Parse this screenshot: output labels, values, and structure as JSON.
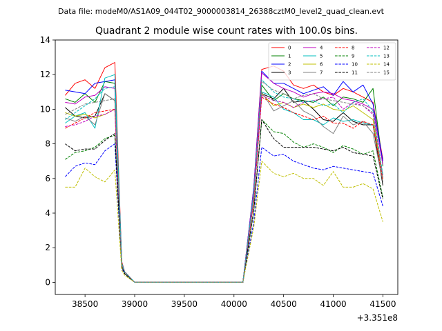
{
  "chart_data": {
    "type": "line",
    "suptitle": "Data file: modeM0/AS1A09_044T02_9000003814_26388cztM0_level2_quad_clean.evt",
    "title": "Quadrant 2 module wise count rates with 100.0s bins.",
    "xlabel": "",
    "ylabel": "",
    "x_offset_label": "+3.351e8",
    "xlim": [
      38200,
      41650
    ],
    "ylim": [
      -0.7,
      14
    ],
    "xticks": [
      38500,
      39000,
      39500,
      40000,
      40500,
      41000,
      41500
    ],
    "xtick_labels": [
      "38500",
      "39000",
      "39500",
      "40000",
      "40500",
      "41000",
      "41500"
    ],
    "yticks": [
      0,
      2,
      4,
      6,
      8,
      10,
      12,
      14
    ],
    "ytick_labels": [
      "0",
      "2",
      "4",
      "6",
      "8",
      "10",
      "12",
      "14"
    ],
    "legend_position": "top-right",
    "x": [
      38300,
      38400,
      38500,
      38600,
      38700,
      38800,
      38870,
      38900,
      39000,
      39100,
      39200,
      39300,
      39400,
      39500,
      39600,
      39700,
      39800,
      39900,
      40000,
      40090,
      40200,
      40280,
      40400,
      40500,
      40600,
      40700,
      40800,
      40900,
      41000,
      41100,
      41200,
      41300,
      41400,
      41500
    ],
    "series": [
      {
        "name": "0",
        "color": "#ff0000",
        "dash": "solid",
        "values": [
          10.8,
          11.5,
          11.7,
          11.2,
          12.4,
          12.7,
          1.2,
          0.6,
          0,
          0,
          0,
          0,
          0,
          0,
          0,
          0,
          0,
          0,
          0,
          0,
          5.5,
          12.3,
          12.5,
          12.2,
          11.4,
          11.2,
          11.4,
          11.0,
          10.8,
          11.2,
          11.0,
          10.7,
          10.4,
          7.1
        ]
      },
      {
        "name": "1",
        "color": "#008000",
        "dash": "solid",
        "values": [
          10.6,
          10.4,
          10.9,
          10.4,
          11.6,
          11.5,
          1.1,
          0.6,
          0,
          0,
          0,
          0,
          0,
          0,
          0,
          0,
          0,
          0,
          0,
          0,
          5.0,
          11.4,
          10.5,
          10.9,
          10.6,
          10.5,
          10.4,
          10.7,
          10.2,
          10.7,
          10.6,
          10.4,
          11.2,
          6.7
        ]
      },
      {
        "name": "2",
        "color": "#0000ff",
        "dash": "solid",
        "values": [
          11.1,
          11.0,
          10.9,
          11.5,
          11.6,
          11.7,
          1.1,
          0.6,
          0,
          0,
          0,
          0,
          0,
          0,
          0,
          0,
          0,
          0,
          0,
          0,
          5.5,
          12.2,
          11.5,
          11.5,
          11.2,
          10.9,
          11.1,
          11.3,
          10.8,
          11.6,
          11.0,
          11.4,
          10.3,
          7.0
        ]
      },
      {
        "name": "3",
        "color": "#000000",
        "dash": "solid",
        "values": [
          10.1,
          9.6,
          9.5,
          9.6,
          10.9,
          10.5,
          1.0,
          0.6,
          0,
          0,
          0,
          0,
          0,
          0,
          0,
          0,
          0,
          0,
          0,
          0,
          5.0,
          10.9,
          10.6,
          11.2,
          10.4,
          10.5,
          10.0,
          9.4,
          9.3,
          9.8,
          9.3,
          9.1,
          9.1,
          5.6
        ]
      },
      {
        "name": "4",
        "color": "#bf00bf",
        "dash": "solid",
        "values": [
          10.4,
          10.3,
          10.7,
          10.8,
          11.3,
          11.2,
          1.1,
          0.6,
          0,
          0,
          0,
          0,
          0,
          0,
          0,
          0,
          0,
          0,
          0,
          0,
          5.4,
          12.1,
          11.5,
          11.2,
          11.0,
          10.7,
          10.9,
          11.0,
          10.9,
          10.6,
          10.5,
          10.3,
          10.0,
          6.8
        ]
      },
      {
        "name": "5",
        "color": "#00bfbf",
        "dash": "solid",
        "values": [
          9.2,
          9.6,
          9.8,
          8.9,
          11.8,
          12.0,
          1.1,
          0.6,
          0,
          0,
          0,
          0,
          0,
          0,
          0,
          0,
          0,
          0,
          0,
          0,
          5.2,
          11.0,
          10.7,
          10.0,
          9.8,
          9.4,
          9.4,
          9.1,
          9.5,
          9.3,
          9.4,
          9.2,
          9.1,
          6.2
        ]
      },
      {
        "name": "6",
        "color": "#bfbf00",
        "dash": "solid",
        "values": [
          9.8,
          9.6,
          9.7,
          9.5,
          9.7,
          10.0,
          1.0,
          0.5,
          0,
          0,
          0,
          0,
          0,
          0,
          0,
          0,
          0,
          0,
          0,
          0,
          4.8,
          10.9,
          10.2,
          10.4,
          10.1,
          10.3,
          10.1,
          10.3,
          10.0,
          9.9,
          10.2,
          9.8,
          9.4,
          6.0
        ]
      },
      {
        "name": "7",
        "color": "#808080",
        "dash": "solid",
        "values": [
          9.5,
          9.3,
          9.6,
          9.1,
          10.9,
          10.5,
          1.0,
          0.6,
          0,
          0,
          0,
          0,
          0,
          0,
          0,
          0,
          0,
          0,
          0,
          0,
          4.8,
          11.0,
          9.9,
          10.2,
          10.5,
          9.9,
          9.6,
          9.0,
          8.6,
          9.6,
          9.1,
          9.3,
          8.6,
          5.8
        ]
      },
      {
        "name": "8",
        "color": "#ff0000",
        "dash": "dashed",
        "values": [
          8.9,
          9.2,
          9.5,
          9.8,
          9.9,
          10.0,
          1.0,
          0.5,
          0,
          0,
          0,
          0,
          0,
          0,
          0,
          0,
          0,
          0,
          0,
          0,
          4.7,
          10.7,
          10.3,
          10.1,
          9.8,
          9.6,
          9.4,
          9.6,
          9.2,
          9.2,
          8.9,
          9.3,
          9.1,
          5.9
        ]
      },
      {
        "name": "9",
        "color": "#008000",
        "dash": "dashed",
        "values": [
          7.1,
          7.5,
          7.6,
          7.8,
          8.3,
          8.5,
          0.9,
          0.5,
          0,
          0,
          0,
          0,
          0,
          0,
          0,
          0,
          0,
          0,
          0,
          0,
          4.1,
          9.4,
          8.7,
          8.6,
          8.1,
          7.8,
          8.0,
          7.8,
          7.5,
          7.9,
          7.7,
          7.4,
          7.6,
          4.9
        ]
      },
      {
        "name": "10",
        "color": "#0000ff",
        "dash": "dashed",
        "values": [
          6.1,
          6.7,
          6.9,
          6.8,
          7.6,
          8.0,
          0.8,
          0.5,
          0,
          0,
          0,
          0,
          0,
          0,
          0,
          0,
          0,
          0,
          0,
          0,
          3.5,
          7.8,
          7.3,
          7.4,
          7.0,
          6.8,
          6.6,
          6.5,
          6.7,
          6.6,
          6.5,
          6.4,
          6.3,
          4.4
        ]
      },
      {
        "name": "11",
        "color": "#000000",
        "dash": "dashed",
        "values": [
          8.0,
          7.6,
          7.7,
          7.7,
          8.2,
          8.6,
          0.9,
          0.5,
          0,
          0,
          0,
          0,
          0,
          0,
          0,
          0,
          0,
          0,
          0,
          0,
          4.2,
          9.4,
          8.3,
          7.8,
          7.8,
          7.8,
          7.8,
          7.7,
          7.6,
          7.8,
          7.5,
          7.4,
          7.3,
          4.8
        ]
      },
      {
        "name": "12",
        "color": "#bf00bf",
        "dash": "dashed",
        "values": [
          9.0,
          9.1,
          9.3,
          9.6,
          9.7,
          10.0,
          1.0,
          0.6,
          0,
          0,
          0,
          0,
          0,
          0,
          0,
          0,
          0,
          0,
          0,
          0,
          4.9,
          10.8,
          10.5,
          10.4,
          10.1,
          10.4,
          10.5,
          10.6,
          10.7,
          10.0,
          10.4,
          10.2,
          9.7,
          6.1
        ]
      },
      {
        "name": "13",
        "color": "#00bfbf",
        "dash": "dashed",
        "values": [
          9.4,
          9.8,
          10.2,
          10.6,
          11.2,
          11.3,
          1.1,
          0.6,
          0,
          0,
          0,
          0,
          0,
          0,
          0,
          0,
          0,
          0,
          0,
          0,
          5.2,
          11.7,
          11.0,
          10.7,
          10.6,
          10.4,
          10.5,
          10.2,
          10.3,
          9.8,
          10.4,
          10.6,
          9.9,
          6.2
        ]
      },
      {
        "name": "14",
        "color": "#bfbf00",
        "dash": "dashed",
        "values": [
          5.5,
          5.5,
          6.6,
          6.1,
          5.8,
          6.5,
          0.7,
          0.4,
          0,
          0,
          0,
          0,
          0,
          0,
          0,
          0,
          0,
          0,
          0,
          0,
          3.2,
          7.0,
          6.3,
          6.1,
          6.3,
          6.0,
          6.0,
          5.6,
          6.4,
          5.5,
          5.5,
          5.7,
          5.4,
          3.5
        ]
      },
      {
        "name": "15",
        "color": "#808080",
        "dash": "dashed",
        "values": [
          9.7,
          10.0,
          10.3,
          10.4,
          10.5,
          10.6,
          1.0,
          0.6,
          0,
          0,
          0,
          0,
          0,
          0,
          0,
          0,
          0,
          0,
          0,
          0,
          5.0,
          11.6,
          11.1,
          10.9,
          10.6,
          10.8,
          10.9,
          10.6,
          10.5,
          10.4,
          10.3,
          10.2,
          9.8,
          6.0
        ]
      }
    ]
  }
}
